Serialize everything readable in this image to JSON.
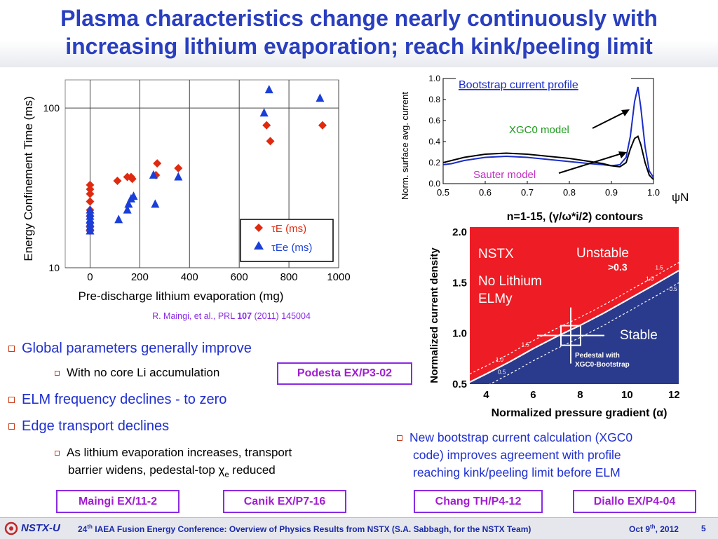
{
  "title": {
    "line1": "Plasma characteristics change nearly continuously with",
    "line2": "increasing lithium evaporation; reach kink/peeling limit"
  },
  "left_chart": {
    "ylabel": "Energy Confinement Time (ms)",
    "xlabel": "Pre-discharge lithium evaporation (mg)",
    "x_ticks": [
      "0",
      "200",
      "400",
      "600",
      "800",
      "1000"
    ],
    "y_ticks": [
      "10",
      "100"
    ],
    "legend": {
      "tauE_label": "τE (ms)",
      "tauEe_label": "τEe (ms)"
    },
    "citation": {
      "prefix": "R. Maingi, et al., PRL ",
      "volume": "107",
      "suffix": " (2011) 145004"
    }
  },
  "bootstrap_chart": {
    "title": "Bootstrap current profile",
    "ylabel": "Norm. surface avg. current",
    "xlabel": "ψN",
    "x_ticks": [
      "0.5",
      "0.6",
      "0.7",
      "0.8",
      "0.9",
      "1.0"
    ],
    "y_ticks": [
      "0.0",
      "0.2",
      "0.4",
      "0.6",
      "0.8",
      "1.0"
    ],
    "xgc0_label": "XGC0 model",
    "sauter_label": "Sauter model"
  },
  "stability_chart": {
    "title": "n=1-15, (γ/ω*i/2) contours",
    "xlabel": "Normalized pressure gradient (α)",
    "ylabel": "Normalized current density",
    "x_ticks": [
      "4",
      "6",
      "8",
      "10",
      "12"
    ],
    "y_ticks": [
      "0.5",
      "1.0",
      "1.5",
      "2.0"
    ],
    "nstx": "NSTX",
    "no_lithium": "No Lithium",
    "elmy": "ELMy",
    "unstable": "Unstable",
    "unstable_value": ">0.3",
    "stable": "Stable",
    "pedestal_line1": "Pedestal with",
    "pedestal_line2": "XGC0-Bootstrap",
    "contour_labels": [
      "1.5",
      "1.0",
      "0.5",
      "1.5",
      "1.0",
      "0.5"
    ]
  },
  "bullets": {
    "b1": "Global parameters generally improve",
    "b1_sub": "With no core Li accumulation",
    "b2": "ELM frequency declines - to zero",
    "b3": "Edge transport declines",
    "b3_sub_line1": "As lithium evaporation increases, transport",
    "b3_sub_line2_prefix": "barrier widens, pedestal-top ",
    "b3_sub_line2_suffix": " reduced",
    "right_line1": "New bootstrap current calculation (XGC0",
    "right_line2": "code) improves agreement with profile",
    "right_line3": "reaching kink/peeling limit before ELM"
  },
  "refs": {
    "podesta": "Podesta  EX/P3-02",
    "maingi": "Maingi EX/11-2",
    "canik": "Canik EX/P7-16",
    "chang": "Chang TH/P4-12",
    "diallo": "Diallo EX/P4-04"
  },
  "footer": {
    "logo": "NSTX-U",
    "conference_prefix": "24",
    "conference_sup": "th",
    "conference_text": " IAEA Fusion Energy Conference: Overview of Physics Results from NSTX (S.A. Sabbagh, for the NSTX Team)",
    "date_prefix": "Oct 9",
    "date_sup": "th",
    "date_suffix": ", 2012",
    "page_number": "5"
  },
  "chart_data": [
    {
      "type": "scatter",
      "xlabel": "Pre-discharge lithium evaporation (mg)",
      "ylabel": "Energy Confinement Time (ms)",
      "xlim": [
        -100,
        1000
      ],
      "ylim": [
        10,
        150
      ],
      "yscale": "log",
      "grid": true,
      "legend": "bottom-right",
      "series": [
        {
          "name": "τE (ms)",
          "color": "#e02a10",
          "marker": "diamond",
          "points": [
            [
              0,
              33
            ],
            [
              0,
              31
            ],
            [
              0,
              29
            ],
            [
              0,
              26
            ],
            [
              0,
              23
            ],
            [
              0,
              21
            ],
            [
              0,
              19
            ],
            [
              0,
              18
            ],
            [
              0,
              17
            ],
            [
              110,
              35
            ],
            [
              150,
              37
            ],
            [
              165,
              37
            ],
            [
              170,
              36
            ],
            [
              270,
              45
            ],
            [
              265,
              38
            ],
            [
              355,
              42
            ],
            [
              710,
              78
            ],
            [
              725,
              62
            ],
            [
              935,
              78
            ]
          ]
        },
        {
          "name": "τEe (ms)",
          "color": "#1a3fd8",
          "marker": "triangle",
          "points": [
            [
              0,
              23
            ],
            [
              0,
              22
            ],
            [
              0,
              21
            ],
            [
              0,
              20
            ],
            [
              0,
              19
            ],
            [
              0,
              18
            ],
            [
              0,
              17
            ],
            [
              115,
              20
            ],
            [
              150,
              23
            ],
            [
              155,
              25
            ],
            [
              165,
              27
            ],
            [
              175,
              28
            ],
            [
              255,
              38
            ],
            [
              262,
              25
            ],
            [
              355,
              37
            ],
            [
              700,
              93
            ],
            [
              720,
              130
            ],
            [
              925,
              115
            ]
          ]
        }
      ]
    },
    {
      "type": "line",
      "title": "Bootstrap current profile",
      "xlabel": "ψN",
      "ylabel": "Norm. surface avg. current",
      "xlim": [
        0.5,
        1.0
      ],
      "ylim": [
        0.0,
        1.0
      ],
      "series": [
        {
          "name": "XGC0 model",
          "color": "#1a2cc8",
          "x": [
            0.5,
            0.52,
            0.55,
            0.6,
            0.65,
            0.7,
            0.75,
            0.8,
            0.85,
            0.88,
            0.9,
            0.92,
            0.935,
            0.945,
            0.955,
            0.963,
            0.97,
            0.98,
            0.99,
            1.0
          ],
          "y": [
            0.18,
            0.19,
            0.22,
            0.25,
            0.26,
            0.25,
            0.23,
            0.21,
            0.19,
            0.18,
            0.17,
            0.18,
            0.25,
            0.45,
            0.78,
            0.92,
            0.72,
            0.35,
            0.12,
            0.06
          ]
        },
        {
          "name": "Sauter model",
          "color": "#000000",
          "x": [
            0.5,
            0.52,
            0.55,
            0.6,
            0.65,
            0.7,
            0.75,
            0.8,
            0.85,
            0.88,
            0.9,
            0.92,
            0.935,
            0.945,
            0.955,
            0.963,
            0.97,
            0.98,
            0.99,
            1.0
          ],
          "y": [
            0.2,
            0.22,
            0.25,
            0.28,
            0.29,
            0.28,
            0.26,
            0.24,
            0.21,
            0.19,
            0.17,
            0.16,
            0.2,
            0.33,
            0.43,
            0.45,
            0.37,
            0.2,
            0.08,
            0.04
          ]
        }
      ]
    },
    {
      "type": "heatmap",
      "title": "n=1-15, (γ/ω*i/2) contours",
      "xlabel": "Normalized pressure gradient (α)",
      "ylabel": "Normalized current density",
      "xlim": [
        3.3,
        12.2
      ],
      "ylim": [
        0.5,
        2.05
      ],
      "regions": [
        "Unstable",
        "Stable"
      ],
      "contour_levels": [
        0.5,
        1.0,
        1.5
      ],
      "pedestal_point": {
        "x": 7.6,
        "y": 0.98,
        "label": "Pedestal with XGC0-Bootstrap"
      }
    }
  ]
}
